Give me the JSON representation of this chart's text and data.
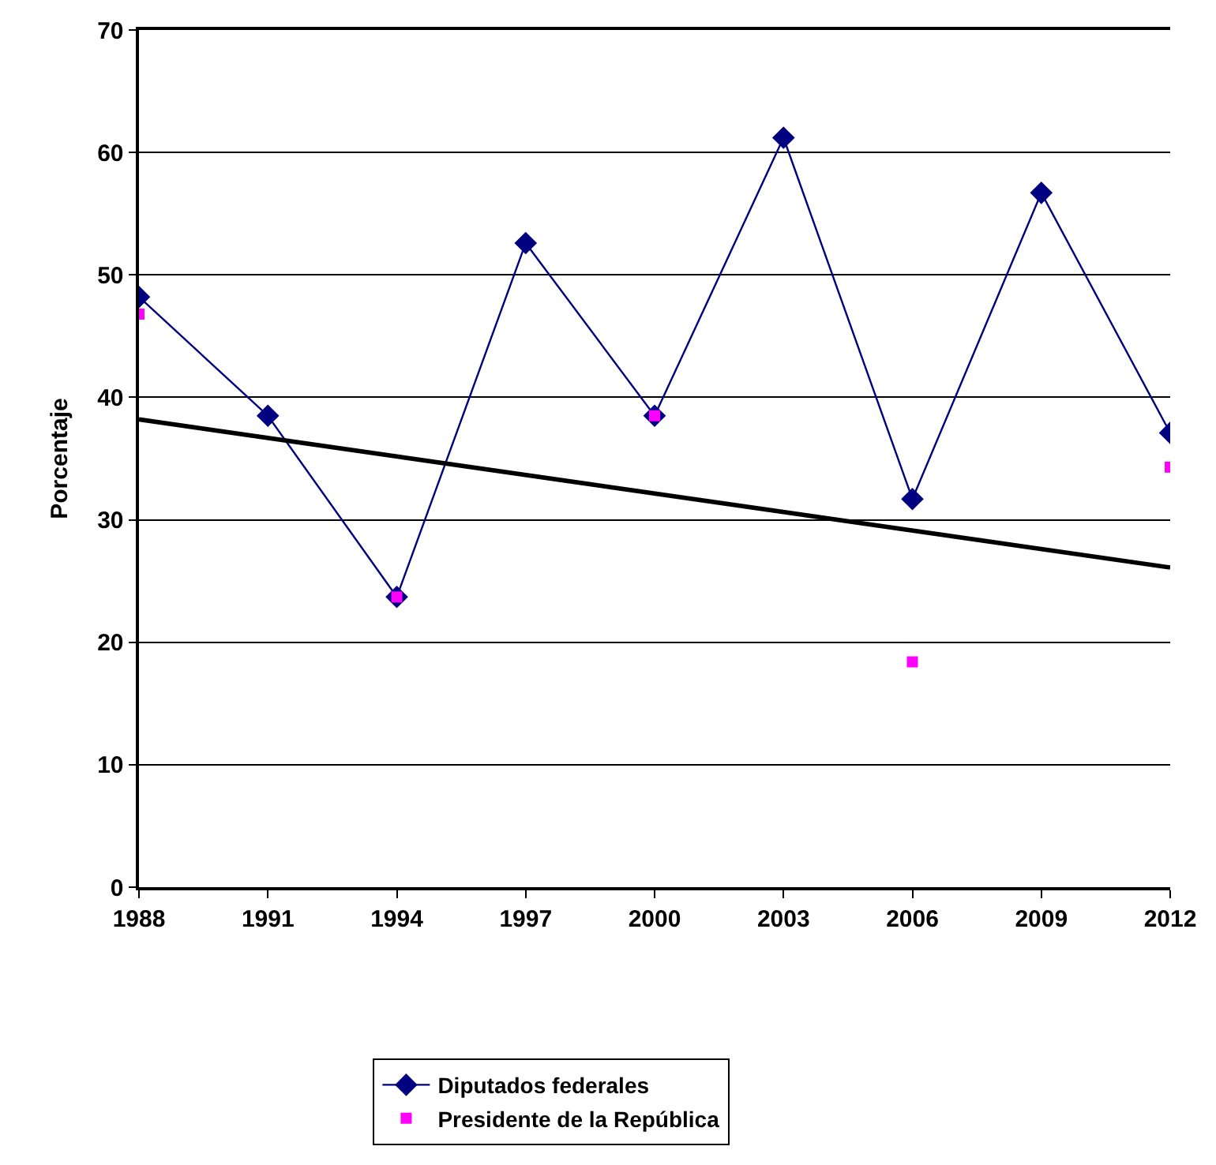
{
  "chart_data": {
    "type": "line",
    "ylabel": "Porcentaje",
    "x": [
      1988,
      1991,
      1994,
      1997,
      2000,
      2003,
      2006,
      2009,
      2012
    ],
    "series": [
      {
        "name": "Diputados federales",
        "color": "#000080",
        "marker": "diamond",
        "values": [
          48.2,
          38.5,
          23.7,
          52.6,
          38.5,
          61.2,
          31.7,
          56.7,
          37.1
        ]
      },
      {
        "name": "Presidente de la República",
        "color": "#ff00ff",
        "type": "scatter",
        "marker": "square",
        "values": [
          46.8,
          null,
          23.7,
          null,
          38.5,
          null,
          18.4,
          null,
          34.3
        ]
      },
      {
        "color": "#000000",
        "marker": "none",
        "x": [
          1988,
          2012
        ],
        "values": [
          38.2,
          26.1
        ]
      }
    ],
    "xlim": [
      1988,
      2012
    ],
    "xticks": [
      1988,
      1991,
      1994,
      1997,
      2000,
      2003,
      2006,
      2009,
      2012
    ],
    "ylim": [
      0,
      70
    ],
    "yticks": [
      0,
      10,
      20,
      30,
      40,
      50,
      60,
      70
    ],
    "grid": "y",
    "legend": "bottom"
  }
}
